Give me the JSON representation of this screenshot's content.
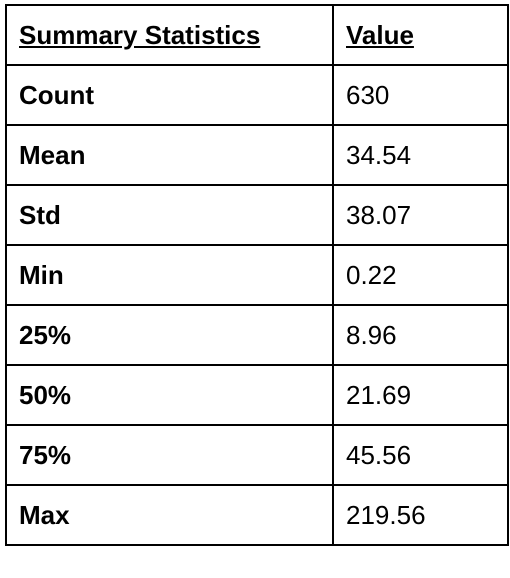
{
  "table": {
    "headers": [
      "Summary Statistics",
      "Value"
    ],
    "rows": [
      {
        "label": "Count",
        "value": "630"
      },
      {
        "label": "Mean",
        "value": "34.54"
      },
      {
        "label": "Std",
        "value": "38.07"
      },
      {
        "label": "Min",
        "value": "0.22"
      },
      {
        "label": "25%",
        "value": "8.96"
      },
      {
        "label": "50%",
        "value": "21.69"
      },
      {
        "label": "75%",
        "value": "45.56"
      },
      {
        "label": "Max",
        "value": "219.56"
      }
    ]
  }
}
